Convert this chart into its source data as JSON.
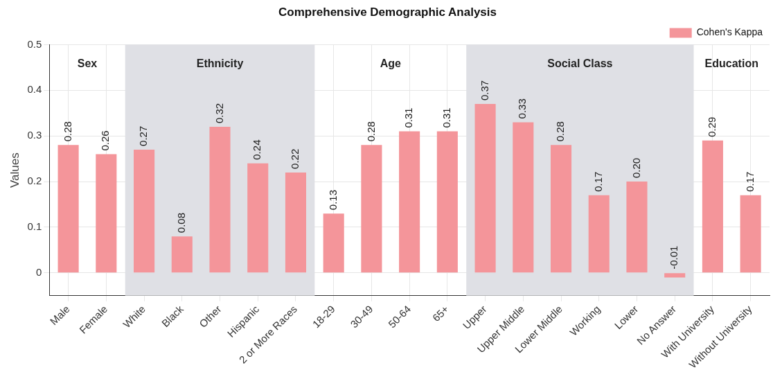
{
  "chart_data": {
    "type": "bar",
    "title": "Comprehensive Demographic Analysis",
    "ylabel": "Values",
    "categories": [
      "Male",
      "Female",
      "White",
      "Black",
      "Other",
      "Hispanic",
      "2 or More Races",
      "18-29",
      "30-49",
      "50-64",
      "65+",
      "Upper",
      "Upper Middle",
      "Lower Middle",
      "Working",
      "Lower",
      "No Answer",
      "With University",
      "Without University"
    ],
    "series": [
      {
        "name": "Cohen's Kappa",
        "color": "#f4959a",
        "values": [
          0.28,
          0.26,
          0.27,
          0.08,
          0.32,
          0.24,
          0.22,
          0.13,
          0.28,
          0.31,
          0.31,
          0.37,
          0.33,
          0.28,
          0.17,
          0.2,
          -0.01,
          0.29,
          0.17
        ],
        "value_labels": [
          "0.28",
          "0.26",
          "0.27",
          "0.08",
          "0.32",
          "0.24",
          "0.22",
          "0.13",
          "0.28",
          "0.31",
          "0.31",
          "0.37",
          "0.33",
          "0.28",
          "0.17",
          "0.20",
          "-0.01",
          "0.29",
          "0.17"
        ]
      }
    ],
    "bands": [
      {
        "axis": "x",
        "from": "White",
        "to": "2 or More Races",
        "label": "Ethnicity",
        "color": "#dfe0e5"
      },
      {
        "axis": "x",
        "from": "Upper",
        "to": "No Answer",
        "label": "Social Class",
        "color": "#dfe0e5"
      }
    ],
    "annotations": [
      "Sex",
      "Age",
      "Education"
    ],
    "ylim": [
      -0.05,
      0.5
    ],
    "yticks": [
      0,
      0.1,
      0.2,
      0.3,
      0.4,
      0.5
    ],
    "grid": true,
    "legend": "top right"
  }
}
